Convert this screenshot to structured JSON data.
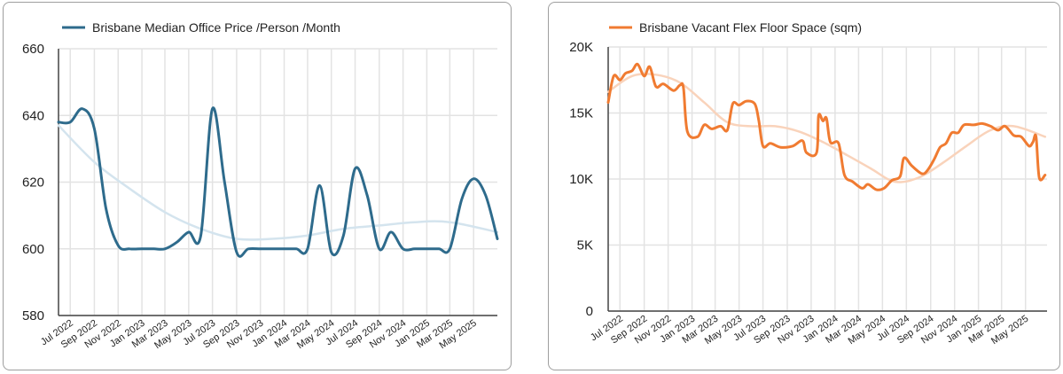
{
  "chart_data": [
    {
      "type": "line",
      "title": "",
      "legend": "top-left",
      "series": [
        {
          "name": "Brisbane Median Office Price /Person /Month",
          "color": "#2e6b8c",
          "points": [
            [
              "2022-06-01",
              638
            ],
            [
              "2022-07-01",
              638
            ],
            [
              "2022-08-01",
              642
            ],
            [
              "2022-09-01",
              636
            ],
            [
              "2022-10-01",
              612
            ],
            [
              "2022-11-01",
              601
            ],
            [
              "2022-12-01",
              600
            ],
            [
              "2023-01-01",
              600
            ],
            [
              "2023-02-01",
              600
            ],
            [
              "2023-03-01",
              600
            ],
            [
              "2023-04-01",
              602
            ],
            [
              "2023-05-01",
              605
            ],
            [
              "2023-06-01",
              604
            ],
            [
              "2023-07-01",
              642
            ],
            [
              "2023-08-01",
              620
            ],
            [
              "2023-09-01",
              599
            ],
            [
              "2023-10-01",
              600
            ],
            [
              "2023-11-01",
              600
            ],
            [
              "2023-12-01",
              600
            ],
            [
              "2024-01-01",
              600
            ],
            [
              "2024-02-01",
              600
            ],
            [
              "2024-03-01",
              600
            ],
            [
              "2024-04-01",
              619
            ],
            [
              "2024-05-01",
              599
            ],
            [
              "2024-06-01",
              604
            ],
            [
              "2024-07-01",
              624
            ],
            [
              "2024-08-01",
              616
            ],
            [
              "2024-09-01",
              600
            ],
            [
              "2024-10-01",
              605
            ],
            [
              "2024-11-01",
              600
            ],
            [
              "2024-12-01",
              600
            ],
            [
              "2025-01-01",
              600
            ],
            [
              "2025-02-01",
              600
            ],
            [
              "2025-03-01",
              600
            ],
            [
              "2025-04-01",
              615
            ],
            [
              "2025-05-01",
              621
            ],
            [
              "2025-06-01",
              616
            ],
            [
              "2025-07-01",
              603
            ]
          ]
        },
        {
          "name": "",
          "color": "#d4e4ee",
          "points": [
            [
              "2022-06-01",
              637
            ],
            [
              "2022-09-01",
              626
            ],
            [
              "2022-12-01",
              618
            ],
            [
              "2023-03-01",
              611
            ],
            [
              "2023-06-01",
              606
            ],
            [
              "2023-09-01",
              603
            ],
            [
              "2023-12-01",
              603
            ],
            [
              "2024-03-01",
              604
            ],
            [
              "2024-06-01",
              606
            ],
            [
              "2024-09-01",
              607
            ],
            [
              "2024-12-01",
              608
            ],
            [
              "2025-03-01",
              608
            ],
            [
              "2025-07-01",
              605
            ]
          ]
        }
      ],
      "x_range": [
        "2022-06-01",
        "2025-07-01"
      ],
      "ylim": [
        580,
        660
      ],
      "yticks": [
        580,
        600,
        620,
        640,
        660
      ],
      "ytick_labels": [
        "580",
        "600",
        "620",
        "640",
        "660"
      ],
      "xtick_labels": [
        "Jul 2022",
        "Sep 2022",
        "Nov 2022",
        "Jan 2023",
        "Mar 2023",
        "May 2023",
        "Jul 2023",
        "Sep 2023",
        "Nov 2023",
        "Jan 2024",
        "Mar 2024",
        "May 2024",
        "Jul 2024",
        "Sep 2024",
        "Nov 2024",
        "Jan 2025",
        "Mar 2025",
        "May 2025"
      ],
      "xtick_dates": [
        "2022-07-01",
        "2022-09-01",
        "2022-11-01",
        "2023-01-01",
        "2023-03-01",
        "2023-05-01",
        "2023-07-01",
        "2023-09-01",
        "2023-11-01",
        "2024-01-01",
        "2024-03-01",
        "2024-05-01",
        "2024-07-01",
        "2024-09-01",
        "2024-11-01",
        "2025-01-01",
        "2025-03-01",
        "2025-05-01"
      ],
      "grid": true
    },
    {
      "type": "line",
      "title": "",
      "legend": "top-left",
      "series": [
        {
          "name": "Brisbane Vacant Flex Floor Space (sqm)",
          "color": "#f07b31",
          "points": [
            [
              "2022-06-01",
              15800
            ],
            [
              "2022-06-15",
              17800
            ],
            [
              "2022-07-01",
              17500
            ],
            [
              "2022-07-15",
              18000
            ],
            [
              "2022-08-01",
              18200
            ],
            [
              "2022-08-15",
              18700
            ],
            [
              "2022-09-01",
              17800
            ],
            [
              "2022-09-15",
              18500
            ],
            [
              "2022-10-01",
              17000
            ],
            [
              "2022-10-20",
              17200
            ],
            [
              "2022-11-15",
              16700
            ],
            [
              "2022-12-01",
              17100
            ],
            [
              "2022-12-10",
              16900
            ],
            [
              "2022-12-20",
              13600
            ],
            [
              "2023-01-15",
              13200
            ],
            [
              "2023-02-01",
              14100
            ],
            [
              "2023-02-20",
              13800
            ],
            [
              "2023-03-15",
              14000
            ],
            [
              "2023-04-01",
              13700
            ],
            [
              "2023-04-15",
              15700
            ],
            [
              "2023-05-01",
              15600
            ],
            [
              "2023-05-20",
              15900
            ],
            [
              "2023-06-10",
              15700
            ],
            [
              "2023-06-20",
              14500
            ],
            [
              "2023-07-01",
              12500
            ],
            [
              "2023-07-20",
              12700
            ],
            [
              "2023-08-15",
              12400
            ],
            [
              "2023-09-15",
              12500
            ],
            [
              "2023-10-10",
              12900
            ],
            [
              "2023-10-20",
              12000
            ],
            [
              "2023-11-15",
              12000
            ],
            [
              "2023-11-20",
              14800
            ],
            [
              "2023-12-01",
              14400
            ],
            [
              "2023-12-10",
              14600
            ],
            [
              "2023-12-20",
              12800
            ],
            [
              "2024-01-10",
              12700
            ],
            [
              "2024-01-25",
              10300
            ],
            [
              "2024-02-15",
              9800
            ],
            [
              "2024-03-10",
              9300
            ],
            [
              "2024-03-25",
              9600
            ],
            [
              "2024-04-15",
              9200
            ],
            [
              "2024-05-05",
              9300
            ],
            [
              "2024-05-25",
              9900
            ],
            [
              "2024-06-15",
              10200
            ],
            [
              "2024-06-25",
              11600
            ],
            [
              "2024-07-15",
              11000
            ],
            [
              "2024-08-10",
              10400
            ],
            [
              "2024-08-25",
              10700
            ],
            [
              "2024-09-10",
              11500
            ],
            [
              "2024-09-25",
              12400
            ],
            [
              "2024-10-10",
              12700
            ],
            [
              "2024-10-25",
              13500
            ],
            [
              "2024-11-10",
              13500
            ],
            [
              "2024-11-25",
              14100
            ],
            [
              "2024-12-20",
              14100
            ],
            [
              "2025-01-10",
              14200
            ],
            [
              "2025-02-01",
              14000
            ],
            [
              "2025-02-20",
              13700
            ],
            [
              "2025-03-10",
              14000
            ],
            [
              "2025-04-01",
              13300
            ],
            [
              "2025-04-20",
              13200
            ],
            [
              "2025-05-10",
              12500
            ],
            [
              "2025-05-20",
              12800
            ],
            [
              "2025-05-28",
              13200
            ],
            [
              "2025-06-05",
              10100
            ],
            [
              "2025-06-20",
              10300
            ]
          ]
        },
        {
          "name": "",
          "color": "#f9d3bb",
          "points": [
            [
              "2022-06-01",
              16600
            ],
            [
              "2022-08-01",
              17800
            ],
            [
              "2022-10-01",
              17900
            ],
            [
              "2022-12-01",
              17300
            ],
            [
              "2023-02-01",
              15800
            ],
            [
              "2023-04-01",
              14300
            ],
            [
              "2023-06-01",
              14000
            ],
            [
              "2023-08-01",
              14000
            ],
            [
              "2023-10-01",
              13600
            ],
            [
              "2023-12-01",
              12800
            ],
            [
              "2024-02-01",
              11800
            ],
            [
              "2024-04-01",
              10800
            ],
            [
              "2024-06-01",
              9800
            ],
            [
              "2024-08-01",
              10100
            ],
            [
              "2024-10-01",
              11200
            ],
            [
              "2024-12-01",
              12500
            ],
            [
              "2025-02-01",
              13700
            ],
            [
              "2025-04-01",
              14000
            ],
            [
              "2025-06-20",
              13200
            ]
          ]
        }
      ],
      "x_range": [
        "2022-06-01",
        "2025-06-25"
      ],
      "ylim": [
        0,
        20000
      ],
      "yticks": [
        0,
        5000,
        10000,
        15000,
        20000
      ],
      "ytick_labels": [
        "0",
        "5K",
        "10K",
        "15K",
        "20K"
      ],
      "xtick_labels": [
        "Jul 2022",
        "Sep 2022",
        "Nov 2022",
        "Jan 2023",
        "Mar 2023",
        "May 2023",
        "Jul 2023",
        "Sep 2023",
        "Nov 2023",
        "Jan 2024",
        "Mar 2024",
        "May 2024",
        "Jul 2024",
        "Sep 2024",
        "Nov 2024",
        "Jan 2025",
        "Mar 2025",
        "May 2025"
      ],
      "xtick_dates": [
        "2022-07-01",
        "2022-09-01",
        "2022-11-01",
        "2023-01-01",
        "2023-03-01",
        "2023-05-01",
        "2023-07-01",
        "2023-09-01",
        "2023-11-01",
        "2024-01-01",
        "2024-03-01",
        "2024-05-01",
        "2024-07-01",
        "2024-09-01",
        "2024-11-01",
        "2025-01-01",
        "2025-03-01",
        "2025-05-01"
      ],
      "grid": true
    }
  ]
}
